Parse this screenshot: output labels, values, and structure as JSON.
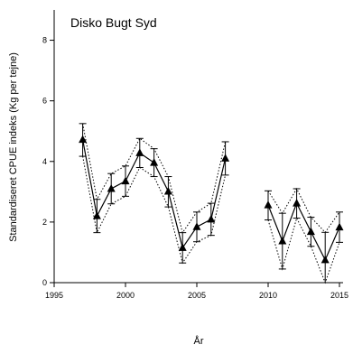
{
  "chart_data": {
    "type": "line",
    "title": "Disko Bugt Syd",
    "xlabel": "År",
    "ylabel": "Standardiseret CPUE indeks (Kg per tejne)",
    "xlim": [
      1995,
      2015
    ],
    "ylim": [
      0,
      9
    ],
    "xticks": [
      1995,
      2000,
      2005,
      2010,
      2015
    ],
    "yticks": [
      0,
      2,
      4,
      6,
      8
    ],
    "grid": false,
    "colors": {
      "line": "#000000",
      "ci": "#000000"
    },
    "series": [
      {
        "x": [
          1997,
          1998,
          1999,
          2000,
          2001,
          2002,
          2003,
          2004,
          2005,
          2006,
          2007
        ],
        "y": [
          4.72,
          2.2,
          3.1,
          3.35,
          4.28,
          3.96,
          3.01,
          1.15,
          1.84,
          2.09,
          4.1
        ],
        "err_low": [
          4.17,
          1.65,
          2.6,
          2.85,
          3.8,
          3.5,
          2.5,
          0.65,
          1.35,
          1.56,
          3.55
        ],
        "err_high": [
          5.25,
          2.75,
          3.6,
          3.85,
          4.76,
          4.42,
          3.5,
          1.65,
          2.33,
          2.62,
          4.65
        ]
      },
      {
        "x": [
          2010,
          2011,
          2012,
          2013,
          2014,
          2015
        ],
        "y": [
          2.56,
          1.37,
          2.62,
          1.68,
          0.75,
          1.83
        ],
        "err_low": [
          2.07,
          0.45,
          2.13,
          1.2,
          0.0,
          1.33
        ],
        "err_high": [
          3.03,
          2.29,
          3.1,
          2.16,
          1.66,
          2.33
        ]
      }
    ]
  }
}
